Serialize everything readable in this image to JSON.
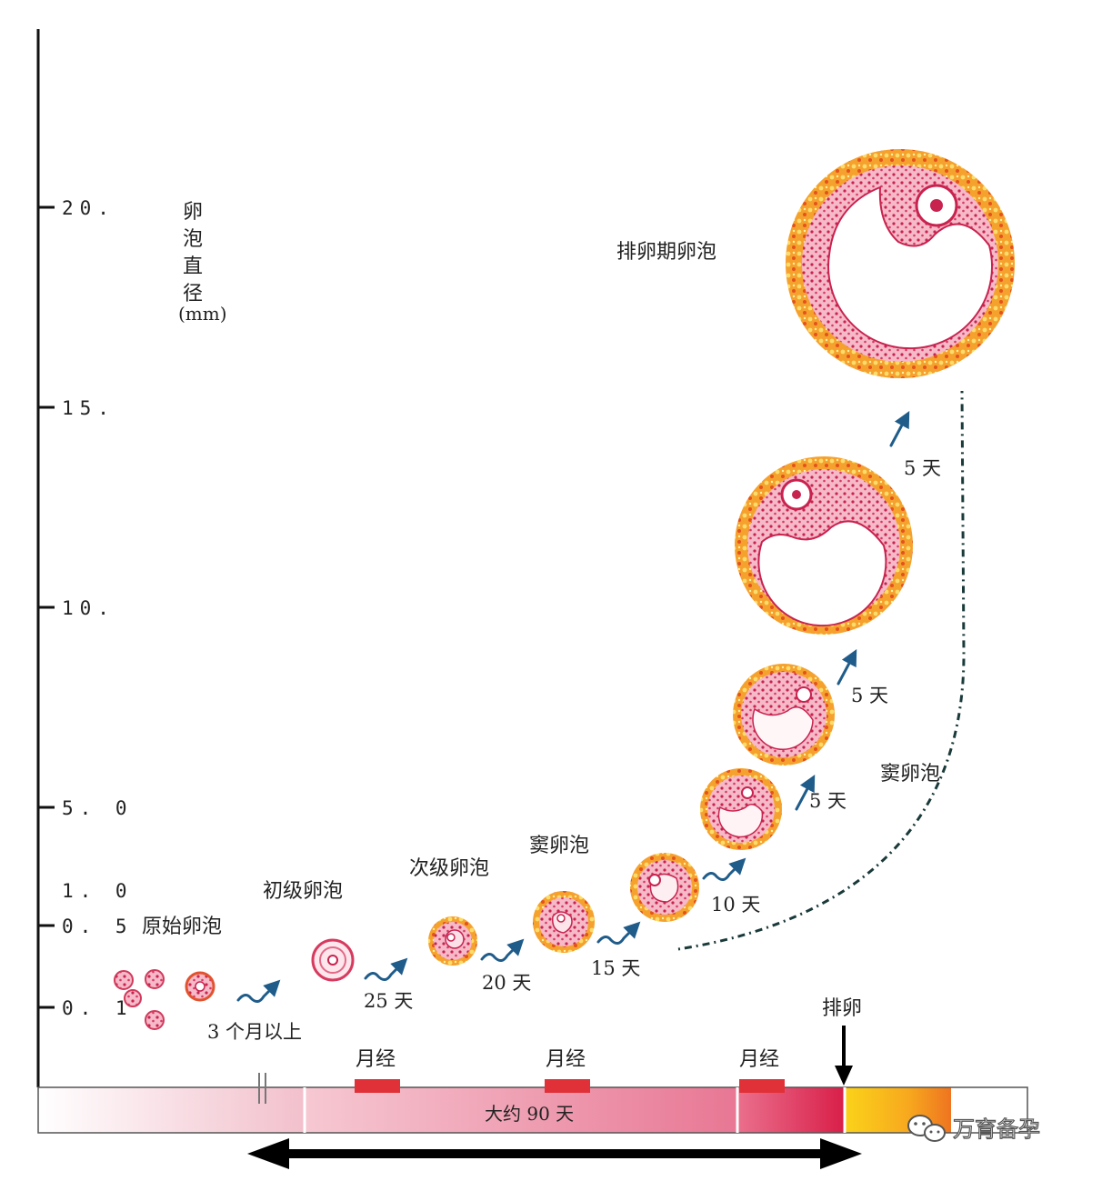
{
  "axis": {
    "title_chars": [
      "卵",
      "泡",
      "直",
      "径"
    ],
    "unit": "(mm)",
    "ticks": [
      "20.",
      "15.",
      "10.",
      "5. 0",
      "1. 0",
      "0. 5",
      "0. 1"
    ]
  },
  "stages": {
    "primordial": "原始卵泡",
    "primary": "初级卵泡",
    "secondary": "次级卵泡",
    "antral": "窦卵泡",
    "antral_right": "窦卵泡",
    "ovulatory": "排卵期卵泡"
  },
  "durations": {
    "d1": "3 个月以上",
    "d2": "25 天",
    "d3": "20 天",
    "d4": "15 天",
    "d5": "10 天",
    "d6": "5 天",
    "d7": "5 天",
    "d8": "5 天"
  },
  "timeline": {
    "menses": [
      "月经",
      "月经",
      "月经"
    ],
    "center_label": "大约 90 天",
    "ovulation": "排卵"
  },
  "watermark": {
    "text": "万育备孕",
    "icon": "wechat-icon"
  },
  "colors": {
    "follicle_outer": "#f08a1c",
    "follicle_inner": "#e2466e",
    "menses_bar": "#e03038",
    "timeline_pink": "#e63a62",
    "timeline_yellow": "#f6c21a"
  }
}
